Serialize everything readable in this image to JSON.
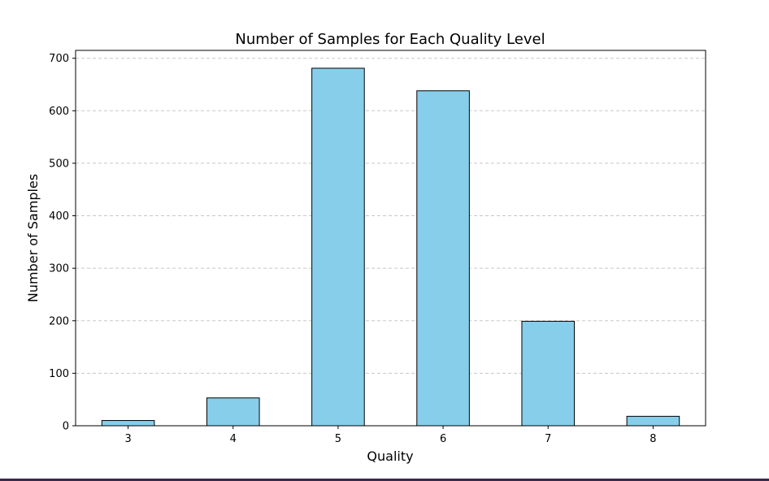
{
  "chart_data": {
    "type": "bar",
    "title": "Number of Samples for Each Quality Level",
    "xlabel": "Quality",
    "ylabel": "Number of Samples",
    "categories": [
      "3",
      "4",
      "5",
      "6",
      "7",
      "8"
    ],
    "values": [
      10,
      53,
      681,
      638,
      199,
      18
    ],
    "ylim": [
      0,
      715
    ],
    "yticks": [
      0,
      100,
      200,
      300,
      400,
      500,
      600,
      700
    ],
    "grid": "y-dashed",
    "bar_color": "#87ceeb",
    "edge_color": "#000000",
    "legend": "none"
  }
}
